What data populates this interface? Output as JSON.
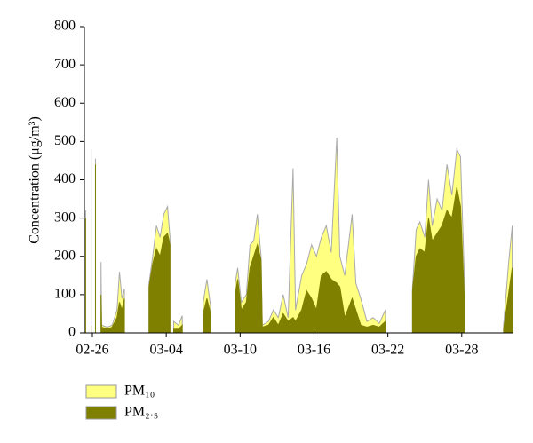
{
  "chart_data": {
    "type": "area",
    "y_label": "Concentration (μg/m³)",
    "x": [
      -0.55,
      -0.5,
      -0.1,
      -0.05,
      0.25,
      0.3,
      0.7,
      0.75,
      1.2,
      1.6,
      2.0,
      2.2,
      2.4,
      2.6,
      2.65,
      4.6,
      4.9,
      5.2,
      5.5,
      5.8,
      6.1,
      6.3,
      6.4,
      6.6,
      7.0,
      7.3,
      7.4,
      9.0,
      9.3,
      9.6,
      9.7,
      11.6,
      11.8,
      12.1,
      12.5,
      12.8,
      13.1,
      13.4,
      13.7,
      13.8,
      14.3,
      14.7,
      15.1,
      15.5,
      15.9,
      16.3,
      16.5,
      17.0,
      17.4,
      17.8,
      18.2,
      18.6,
      19.0,
      19.4,
      19.85,
      20.1,
      20.5,
      21.1,
      21.4,
      21.8,
      22.3,
      22.8,
      23.3,
      23.8,
      24.0,
      26.0,
      26.3,
      26.6,
      27.0,
      27.3,
      27.6,
      28.0,
      28.4,
      28.8,
      29.2,
      29.6,
      29.9,
      30.2,
      30.3,
      33.4,
      33.8,
      34.1
    ],
    "series": [
      {
        "name": "PM₁₀",
        "color": "#ffff80",
        "outline": "#aaaaaa",
        "values": [
          320,
          null,
          480,
          null,
          455,
          null,
          185,
          20,
          15,
          20,
          60,
          160,
          90,
          115,
          null,
          130,
          200,
          280,
          250,
          310,
          330,
          250,
          null,
          30,
          20,
          45,
          null,
          80,
          140,
          70,
          null,
          130,
          170,
          80,
          100,
          230,
          240,
          310,
          200,
          20,
          30,
          60,
          40,
          100,
          40,
          430,
          60,
          150,
          180,
          230,
          200,
          250,
          280,
          210,
          510,
          200,
          150,
          310,
          130,
          90,
          30,
          40,
          25,
          60,
          null,
          120,
          270,
          290,
          250,
          400,
          280,
          350,
          320,
          440,
          360,
          480,
          460,
          160,
          null,
          20,
          180,
          280
        ]
      },
      {
        "name": "PM₂.₅",
        "color": "#808000",
        "outline": "#808000",
        "values": [
          300,
          null,
          20,
          null,
          440,
          null,
          100,
          15,
          10,
          15,
          40,
          80,
          60,
          90,
          null,
          120,
          180,
          220,
          200,
          250,
          260,
          230,
          null,
          10,
          10,
          20,
          null,
          50,
          90,
          50,
          null,
          100,
          140,
          60,
          80,
          170,
          200,
          230,
          190,
          15,
          20,
          40,
          20,
          50,
          30,
          40,
          30,
          60,
          110,
          90,
          60,
          150,
          160,
          140,
          130,
          120,
          40,
          90,
          60,
          20,
          15,
          20,
          15,
          30,
          null,
          110,
          200,
          220,
          210,
          300,
          240,
          260,
          280,
          320,
          300,
          380,
          330,
          100,
          null,
          10,
          100,
          170
        ]
      }
    ],
    "xlim": [
      -0.65,
      34.2
    ],
    "xticks": [
      {
        "value": 0,
        "label": "02-26"
      },
      {
        "value": 6,
        "label": "03-04"
      },
      {
        "value": 12,
        "label": "03-10"
      },
      {
        "value": 18,
        "label": "03-16"
      },
      {
        "value": 24,
        "label": "03-22"
      },
      {
        "value": 30,
        "label": "03-28"
      }
    ],
    "ylim": [
      0,
      800
    ],
    "yticks": [
      0,
      100,
      200,
      300,
      400,
      500,
      600,
      700,
      800
    ],
    "legend": "bottom-left"
  }
}
